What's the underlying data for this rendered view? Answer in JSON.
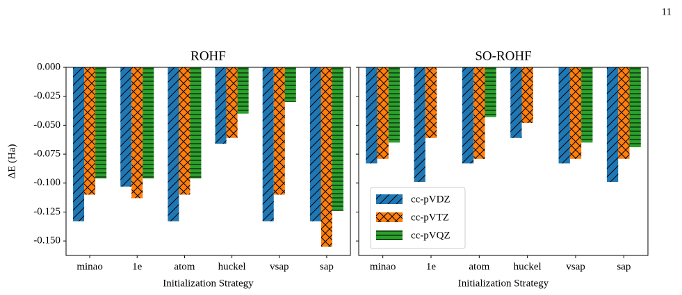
{
  "page_number": "11",
  "chart_data": [
    {
      "type": "bar",
      "title": "ROHF",
      "x_label": "Initialization Strategy",
      "y_label": "ΔE (Ha)",
      "categories": [
        "minao",
        "1e",
        "atom",
        "huckel",
        "vsap",
        "sap"
      ],
      "series": [
        {
          "name": "cc-pVDZ",
          "color": "#1f77b4",
          "hatch": "/",
          "values": [
            -0.133,
            -0.103,
            -0.133,
            -0.066,
            -0.133,
            -0.133
          ]
        },
        {
          "name": "cc-pVTZ",
          "color": "#ff7f0e",
          "hatch": "x",
          "values": [
            -0.11,
            -0.113,
            -0.11,
            -0.061,
            -0.11,
            -0.155
          ]
        },
        {
          "name": "cc-pVQZ",
          "color": "#2ca02c",
          "hatch": "-",
          "values": [
            -0.096,
            -0.096,
            -0.096,
            -0.04,
            -0.03,
            -0.124
          ]
        }
      ],
      "ylim": [
        -0.1625,
        0
      ],
      "yticks": [
        {
          "value": -0.15,
          "label": "-0.150"
        },
        {
          "value": -0.125,
          "label": "-0.125"
        },
        {
          "value": -0.1,
          "label": "-0.100"
        },
        {
          "value": -0.075,
          "label": "-0.075"
        },
        {
          "value": -0.05,
          "label": "-0.050"
        },
        {
          "value": -0.025,
          "label": "-0.025"
        },
        {
          "value": 0,
          "label": "0.000"
        }
      ]
    },
    {
      "type": "bar",
      "title": "SO-ROHF",
      "x_label": "Initialization Strategy",
      "categories": [
        "minao",
        "1e",
        "atom",
        "huckel",
        "vsap",
        "sap"
      ],
      "series": [
        {
          "name": "cc-pVDZ",
          "color": "#1f77b4",
          "hatch": "/",
          "values": [
            -0.083,
            -0.099,
            -0.083,
            -0.061,
            -0.083,
            -0.099
          ]
        },
        {
          "name": "cc-pVTZ",
          "color": "#ff7f0e",
          "hatch": "x",
          "values": [
            -0.079,
            -0.061,
            -0.079,
            -0.048,
            -0.079,
            -0.079
          ]
        },
        {
          "name": "cc-pVQZ",
          "color": "#2ca02c",
          "hatch": "-",
          "values": [
            -0.065,
            null,
            -0.043,
            null,
            -0.065,
            -0.069
          ]
        }
      ],
      "ylim": [
        -0.1625,
        0
      ],
      "yticks": [
        -0.15,
        -0.125,
        -0.1,
        -0.075,
        -0.05,
        -0.025,
        0
      ],
      "legend": "lower left"
    }
  ]
}
